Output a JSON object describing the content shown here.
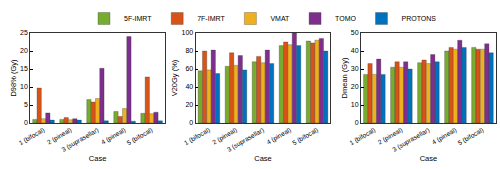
{
  "chart_data": [
    {
      "type": "bar",
      "xlabel": "Case",
      "ylabel": "D98% (Gy)",
      "categories": [
        "1 (bifocal)",
        "2 (pineal)",
        "3 (suprasellar)",
        "4 (pineal)",
        "5 (bifocal)"
      ],
      "series": [
        {
          "name": "5F-IMRT",
          "color": "#77AC30",
          "values": [
            1.0,
            1.0,
            6.5,
            3.2,
            2.7
          ]
        },
        {
          "name": "7F-IMRT",
          "color": "#D95319",
          "values": [
            9.7,
            1.5,
            5.8,
            1.8,
            12.8
          ]
        },
        {
          "name": "VMAT",
          "color": "#EDB120",
          "values": [
            1.2,
            0.9,
            6.8,
            4.0,
            2.6
          ]
        },
        {
          "name": "TOMO",
          "color": "#7E2F8E",
          "values": [
            2.8,
            1.2,
            15.2,
            24.0,
            3.0
          ]
        },
        {
          "name": "PROTONS",
          "color": "#0072BD",
          "values": [
            0.8,
            0.8,
            0.6,
            0.5,
            0.6
          ]
        }
      ],
      "ylim": [
        0,
        25
      ],
      "yticks": [
        0,
        5,
        10,
        15,
        20,
        25
      ],
      "grid": false,
      "legend": "top"
    },
    {
      "type": "bar",
      "xlabel": "Case",
      "ylabel": "V20Gy (%)",
      "categories": [
        "1 (bifocal)",
        "2 (pineal)",
        "3 (suprasellar)",
        "4 (pineal)",
        "5 (bifocal)"
      ],
      "series": [
        {
          "name": "5F-IMRT",
          "color": "#77AC30",
          "values": [
            58,
            63,
            68,
            86,
            91
          ]
        },
        {
          "name": "7F-IMRT",
          "color": "#D95319",
          "values": [
            80,
            78,
            74,
            90,
            89
          ]
        },
        {
          "name": "VMAT",
          "color": "#EDB120",
          "values": [
            59,
            64,
            67,
            87,
            92
          ]
        },
        {
          "name": "TOMO",
          "color": "#7E2F8E",
          "values": [
            81,
            75,
            81,
            100,
            94
          ]
        },
        {
          "name": "PROTONS",
          "color": "#0072BD",
          "values": [
            55,
            59,
            66,
            86,
            80
          ]
        }
      ],
      "ylim": [
        0,
        100
      ],
      "yticks": [
        0,
        20,
        40,
        60,
        80,
        100
      ],
      "grid": false
    },
    {
      "type": "bar",
      "xlabel": "Case",
      "ylabel": "Dmean (Gy)",
      "categories": [
        "1 (bifocal)",
        "2 (pineal)",
        "3 (suprasellar)",
        "4 (pineal)",
        "5 (bifocal)"
      ],
      "series": [
        {
          "name": "5F-IMRT",
          "color": "#77AC30",
          "values": [
            27,
            31,
            33.5,
            40,
            42
          ]
        },
        {
          "name": "7F-IMRT",
          "color": "#D95319",
          "values": [
            33,
            34,
            35,
            42,
            41
          ]
        },
        {
          "name": "VMAT",
          "color": "#EDB120",
          "values": [
            27,
            31,
            33,
            41,
            41
          ]
        },
        {
          "name": "TOMO",
          "color": "#7E2F8E",
          "values": [
            35.5,
            34,
            38,
            46,
            44
          ]
        },
        {
          "name": "PROTONS",
          "color": "#0072BD",
          "values": [
            27,
            30,
            34,
            42,
            39
          ]
        }
      ],
      "ylim": [
        0,
        50
      ],
      "yticks": [
        0,
        10,
        20,
        30,
        40,
        50
      ],
      "grid": false
    }
  ]
}
